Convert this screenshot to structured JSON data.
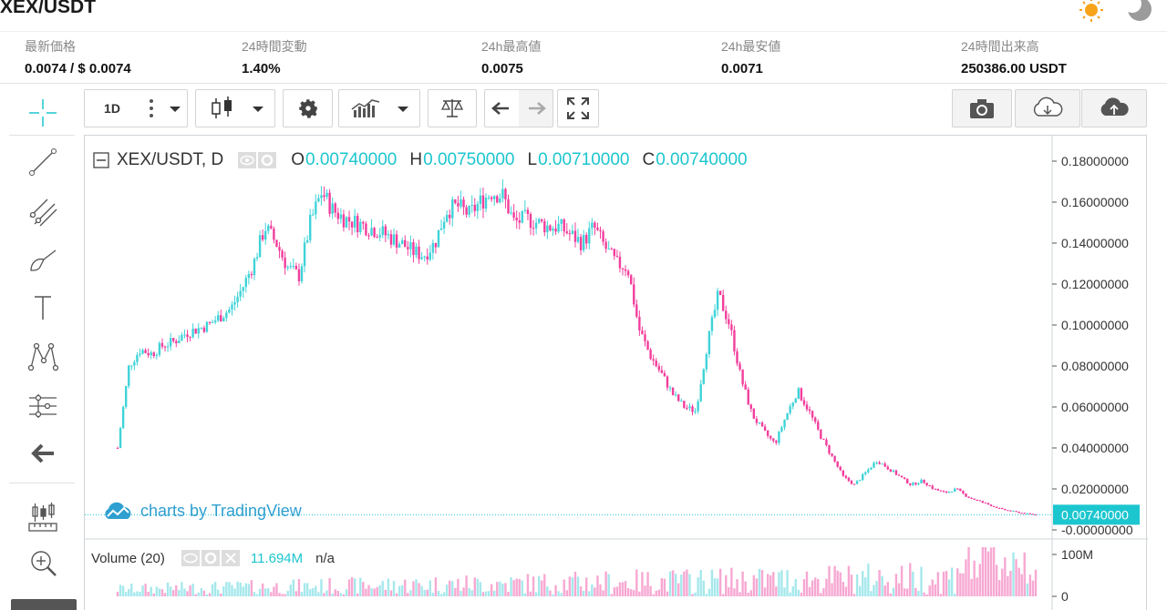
{
  "header": {
    "pair": "XEX/USDT"
  },
  "stats": [
    {
      "label": "最新価格",
      "value": "0.0074 / $ 0.0074"
    },
    {
      "label": "24時間変動",
      "value": "1.40%"
    },
    {
      "label": "24h最高値",
      "value": "0.0075"
    },
    {
      "label": "24h最安値",
      "value": "0.0071"
    },
    {
      "label": "24時間出来高",
      "value": "250386.00 USDT"
    }
  ],
  "toolbar": {
    "interval": "1D"
  },
  "legend": {
    "symbol": "XEX/USDT, D",
    "o_label": "O",
    "open": "0.00740000",
    "h_label": "H",
    "high": "0.00750000",
    "l_label": "L",
    "low": "0.00710000",
    "c_label": "C",
    "close": "0.00740000"
  },
  "volume": {
    "label": "Volume (20)",
    "value": "11.694M",
    "na": "n/a"
  },
  "watermark": "charts by TradingView",
  "colors": {
    "up": "#3fd3d8",
    "down": "#f23e9c",
    "accent": "#1cc6cf",
    "axis": "#555555"
  },
  "chart_data": {
    "type": "candlestick",
    "title": "XEX/USDT, D",
    "y_axis_ticks": [
      "0.18000000",
      "0.16000000",
      "0.14000000",
      "0.12000000",
      "0.10000000",
      "0.08000000",
      "0.06000000",
      "0.04000000",
      "0.02000000",
      "-0.00000000"
    ],
    "ylim": [
      0,
      0.18
    ],
    "last_price": "0.00740000",
    "last_value": 0.0074,
    "volume_ticks": [
      "100M",
      "0"
    ],
    "close_path": [
      0.04,
      0.08,
      0.088,
      0.086,
      0.09,
      0.092,
      0.096,
      0.098,
      0.1,
      0.104,
      0.108,
      0.118,
      0.13,
      0.148,
      0.14,
      0.128,
      0.124,
      0.15,
      0.165,
      0.156,
      0.152,
      0.15,
      0.148,
      0.146,
      0.143,
      0.14,
      0.136,
      0.134,
      0.14,
      0.156,
      0.158,
      0.154,
      0.16,
      0.165,
      0.163,
      0.15,
      0.152,
      0.15,
      0.148,
      0.148,
      0.144,
      0.14,
      0.148,
      0.138,
      0.13,
      0.128,
      0.098,
      0.085,
      0.076,
      0.066,
      0.06,
      0.058,
      0.09,
      0.115,
      0.1,
      0.074,
      0.056,
      0.048,
      0.042,
      0.056,
      0.068,
      0.058,
      0.046,
      0.036,
      0.026,
      0.022,
      0.028,
      0.034,
      0.03,
      0.026,
      0.022,
      0.024,
      0.02,
      0.018,
      0.02,
      0.016,
      0.014,
      0.012,
      0.01,
      0.009,
      0.008,
      0.0074
    ]
  }
}
